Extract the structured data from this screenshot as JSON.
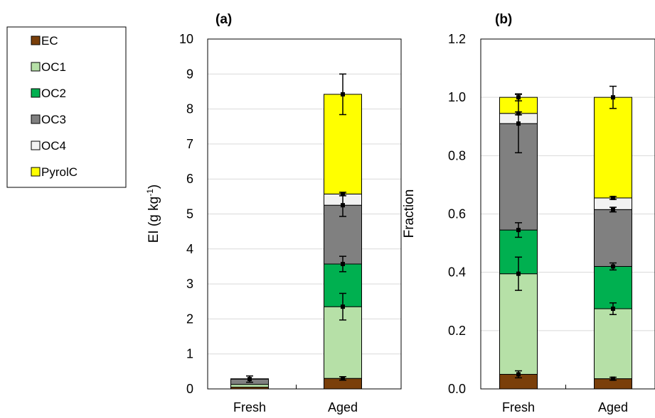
{
  "colors": {
    "EC": "#7a3f0a",
    "OC1": "#b6e0a7",
    "OC2": "#00b050",
    "OC3": "#808080",
    "OC4": "#f2f2f2",
    "PyrolC": "#ffff00"
  },
  "legend": [
    "EC",
    "OC1",
    "OC2",
    "OC3",
    "OC4",
    "PyrolC"
  ],
  "chart_data": [
    {
      "type": "bar",
      "stacked": true,
      "panel_label": "(a)",
      "ylabel": "EI (g kg",
      "ylabel_sup": "-1",
      "ylabel_tail": ")",
      "ylim": [
        0,
        10
      ],
      "yticks": [
        "0",
        "1",
        "2",
        "3",
        "4",
        "5",
        "6",
        "7",
        "8",
        "9",
        "10"
      ],
      "grid": true,
      "categories": [
        "Fresh",
        "Aged"
      ],
      "series": [
        {
          "name": "EC",
          "values": [
            0.05,
            0.3
          ],
          "errors": [
            0,
            0.05
          ]
        },
        {
          "name": "OC1",
          "values": [
            0.08,
            2.05
          ],
          "errors": [
            0,
            0.38
          ]
        },
        {
          "name": "OC2",
          "values": [
            0.0,
            1.22
          ],
          "errors": [
            0,
            0.22
          ]
        },
        {
          "name": "OC3",
          "values": [
            0.15,
            1.68
          ],
          "errors": [
            0.09,
            0.32
          ]
        },
        {
          "name": "OC4",
          "values": [
            0.01,
            0.32
          ],
          "errors": [
            0,
            0.05
          ]
        },
        {
          "name": "PyrolC",
          "values": [
            0.0,
            2.85
          ],
          "errors": [
            0,
            0.58
          ]
        }
      ]
    },
    {
      "type": "bar",
      "stacked": true,
      "panel_label": "(b)",
      "ylabel": "Fraction",
      "ylim": [
        0,
        1.2
      ],
      "yticks": [
        "0.0",
        "0.2",
        "0.4",
        "0.6",
        "0.8",
        "1.0",
        "1.2"
      ],
      "grid": true,
      "categories": [
        "Fresh",
        "Aged"
      ],
      "series": [
        {
          "name": "EC",
          "values": [
            0.05,
            0.035
          ],
          "errors": [
            0.012,
            0.005
          ]
        },
        {
          "name": "OC1",
          "values": [
            0.345,
            0.24
          ],
          "errors": [
            0.057,
            0.02
          ]
        },
        {
          "name": "OC2",
          "values": [
            0.15,
            0.145
          ],
          "errors": [
            0.025,
            0.012
          ]
        },
        {
          "name": "OC3",
          "values": [
            0.365,
            0.195
          ],
          "errors": [
            0.1,
            0.008
          ]
        },
        {
          "name": "OC4",
          "values": [
            0.035,
            0.04
          ],
          "errors": [
            0.005,
            0.005
          ]
        },
        {
          "name": "PyrolC",
          "values": [
            0.055,
            0.345
          ],
          "errors": [
            0.012,
            0.038
          ]
        }
      ]
    }
  ]
}
